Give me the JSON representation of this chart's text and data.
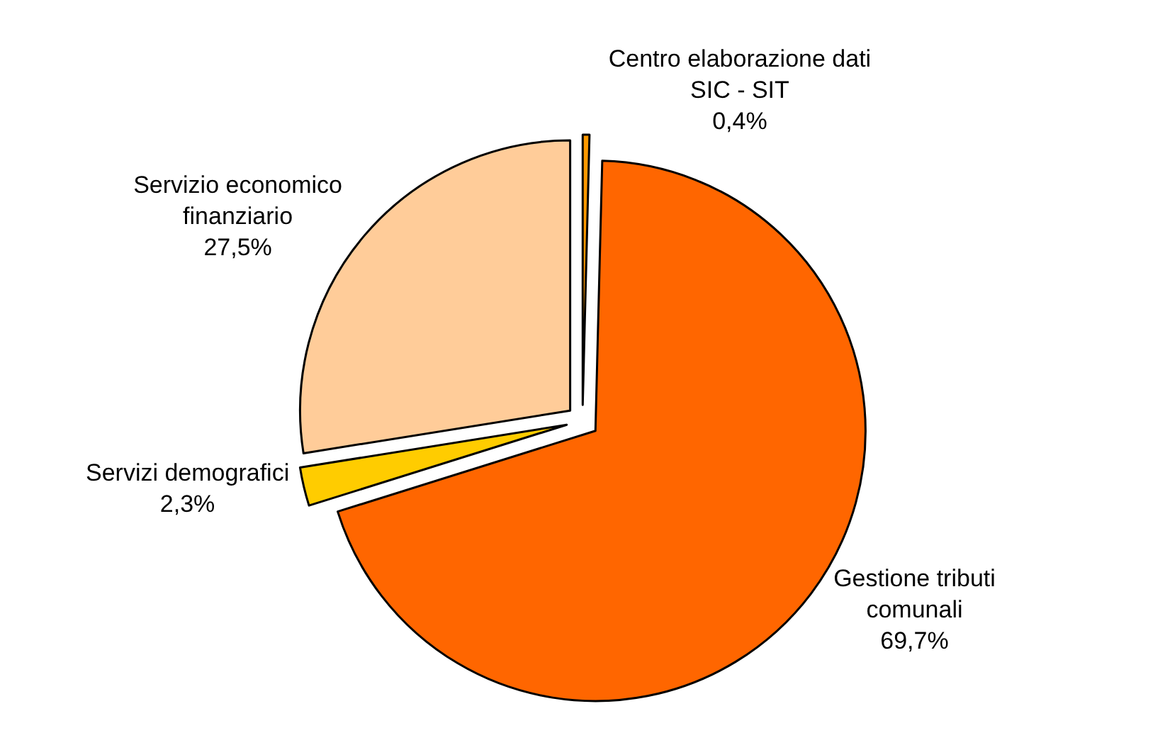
{
  "chart_data": {
    "type": "pie",
    "categories": [
      "Centro elaborazione dati SIC - SIT",
      "Gestione tributi comunali",
      "Servizi demografici",
      "Servizio economico finanziario"
    ],
    "values": [
      0.4,
      69.7,
      2.3,
      27.5
    ],
    "value_labels": [
      "0,4%",
      "69,7%",
      "2,3%",
      "27,5%"
    ],
    "colors": [
      "#ff9900",
      "#ff6600",
      "#ffcc00",
      "#ffcc99"
    ]
  }
}
